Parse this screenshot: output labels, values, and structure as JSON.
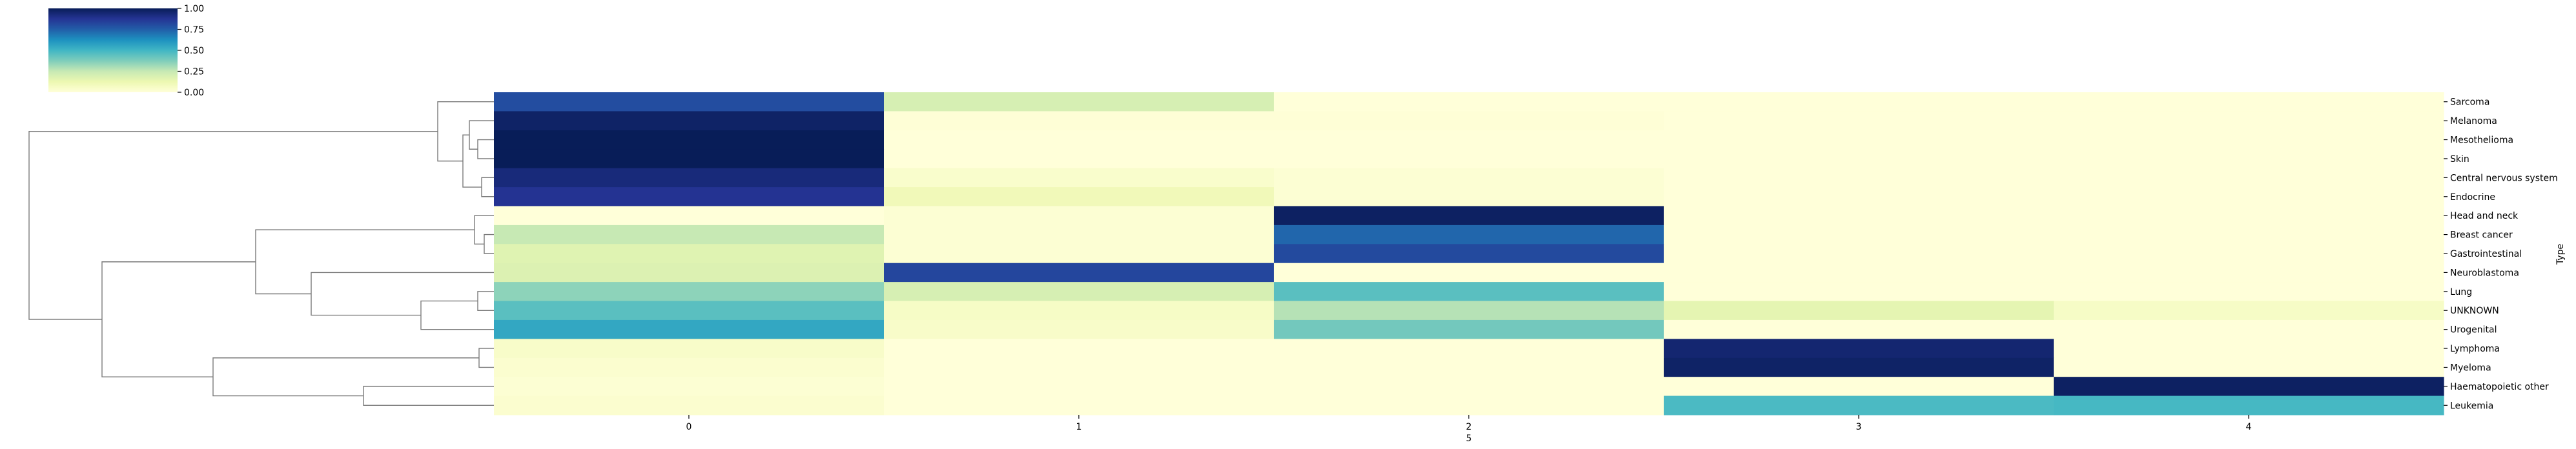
{
  "chart_data": {
    "type": "heatmap",
    "title": "",
    "xlabel": "5",
    "ylabel": "Type",
    "colormap": "YlGnBu",
    "colorbar": {
      "ticks": [
        "0.00",
        "0.25",
        "0.50",
        "0.75",
        "1.00"
      ],
      "range": [
        0,
        1
      ],
      "placement": "top-left"
    },
    "dendrogram": "rows",
    "columns": [
      "0",
      "1",
      "2",
      "3",
      "4"
    ],
    "rows": [
      "Sarcoma",
      "Melanoma",
      "Mesothelioma",
      "Skin",
      "Central nervous system",
      "Endocrine",
      "Head and neck",
      "Breast cancer",
      "Gastrointestinal",
      "Neuroblastoma",
      "Lung",
      "UNKNOWN",
      "Urogenital",
      "Lymphoma",
      "Myeloma",
      "Haematopoietic other",
      "Leukemia"
    ],
    "values": [
      [
        0.8,
        0.2,
        0.0,
        0.0,
        0.0
      ],
      [
        0.97,
        0.01,
        0.01,
        0.0,
        0.0
      ],
      [
        1.0,
        0.0,
        0.0,
        0.0,
        0.0
      ],
      [
        1.0,
        0.0,
        0.0,
        0.0,
        0.0
      ],
      [
        0.93,
        0.04,
        0.02,
        0.0,
        0.0
      ],
      [
        0.88,
        0.1,
        0.02,
        0.0,
        0.0
      ],
      [
        0.0,
        0.02,
        0.98,
        0.0,
        0.0
      ],
      [
        0.25,
        0.02,
        0.73,
        0.0,
        0.0
      ],
      [
        0.17,
        0.02,
        0.81,
        0.0,
        0.0
      ],
      [
        0.18,
        0.82,
        0.0,
        0.0,
        0.0
      ],
      [
        0.35,
        0.2,
        0.45,
        0.0,
        0.0
      ],
      [
        0.45,
        0.06,
        0.28,
        0.15,
        0.06
      ],
      [
        0.55,
        0.05,
        0.4,
        0.0,
        0.0
      ],
      [
        0.05,
        0.0,
        0.0,
        0.95,
        0.0
      ],
      [
        0.03,
        0.0,
        0.0,
        0.97,
        0.0
      ],
      [
        0.02,
        0.0,
        0.0,
        0.0,
        0.98
      ],
      [
        0.03,
        0.0,
        0.0,
        0.48,
        0.49
      ]
    ]
  }
}
